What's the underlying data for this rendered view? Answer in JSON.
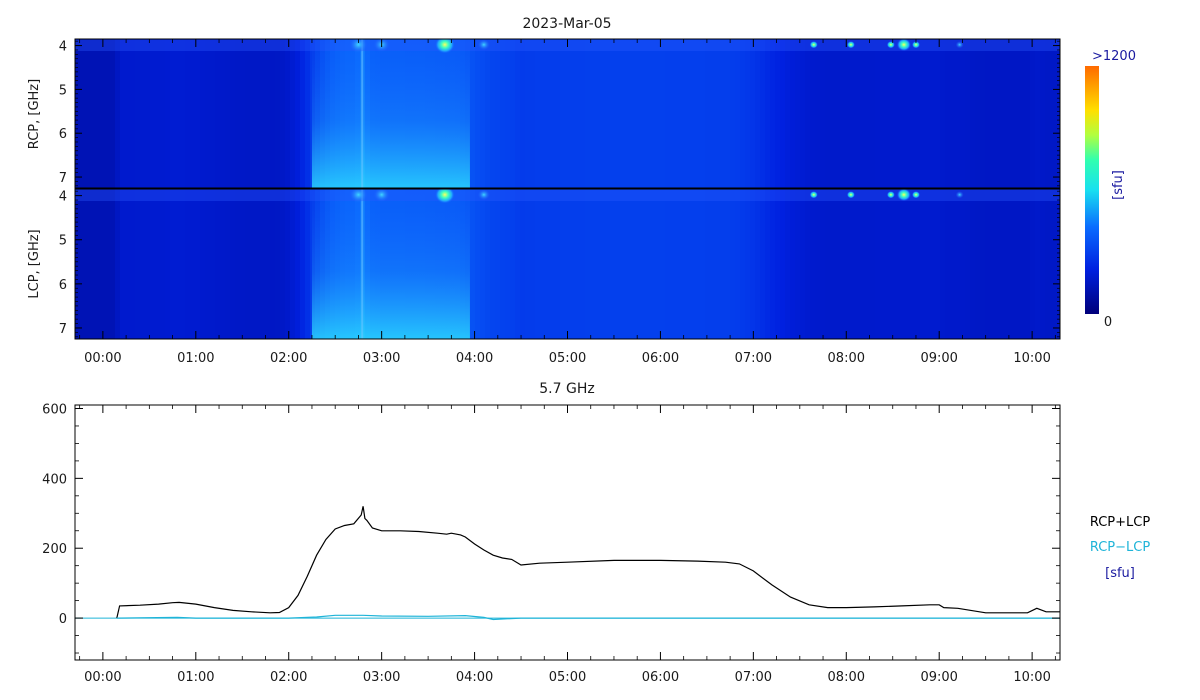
{
  "page": {
    "title": "2023-Mar-05"
  },
  "colors": {
    "sum_line": "#000000",
    "diff_line": "#1fb4d8",
    "unit_label": "#1a1aa0",
    "cmap_low": "#00008a",
    "cmap_mid": "#0a3ff0",
    "cmap_cyan": "#18e4f0",
    "cmap_high": "#ff7a00"
  },
  "spectrogram": {
    "rcp_ylabel": "RCP, [GHz]",
    "lcp_ylabel": "LCP, [GHz]",
    "freq_ticks": [
      "4",
      "5",
      "6",
      "7"
    ],
    "freq_range_ghz": [
      3.85,
      7.25
    ],
    "colorbar": {
      "max_label": ">1200",
      "min_label": "0",
      "unit_label": "[sfu]"
    }
  },
  "time_axis": {
    "range_hours": [
      -0.3,
      10.3
    ],
    "tick_labels": [
      "00:00",
      "01:00",
      "02:00",
      "03:00",
      "04:00",
      "05:00",
      "06:00",
      "07:00",
      "08:00",
      "09:00",
      "10:00"
    ]
  },
  "legend": {
    "sum_label": "RCP+LCP",
    "diff_label": "RCP−LCP",
    "unit_label": "[sfu]"
  },
  "chart_data": [
    {
      "type": "heatmap",
      "panel": "RCP",
      "ylabel": "RCP, [GHz]",
      "xlabel": "",
      "ylim": [
        3.85,
        7.25
      ],
      "ytick_labels": [
        "4",
        "5",
        "6",
        "7"
      ],
      "colorbar_range_sfu": [
        0,
        1200
      ],
      "notes": "intensity (sfu) vs time, roughly uniform across frequency"
    },
    {
      "type": "heatmap",
      "panel": "LCP",
      "ylabel": "LCP, [GHz]",
      "xlabel": "",
      "ylim": [
        3.85,
        7.25
      ],
      "ytick_labels": [
        "4",
        "5",
        "6",
        "7"
      ],
      "colorbar_range_sfu": [
        0,
        1200
      ]
    },
    {
      "type": "line",
      "title": "5.7 GHz",
      "xlabel": "",
      "ylabel": "",
      "xlim": [
        -0.3,
        10.3
      ],
      "ylim": [
        -120,
        610
      ],
      "yticks": [
        0,
        200,
        400,
        600
      ],
      "xtick_labels": [
        "00:00",
        "01:00",
        "02:00",
        "03:00",
        "04:00",
        "05:00",
        "06:00",
        "07:00",
        "08:00",
        "09:00",
        "10:00"
      ],
      "series": [
        {
          "name": "RCP+LCP",
          "x": [
            0.15,
            0.18,
            0.4,
            0.6,
            0.75,
            0.82,
            1.0,
            1.2,
            1.4,
            1.6,
            1.8,
            1.9,
            2.0,
            2.1,
            2.2,
            2.3,
            2.4,
            2.5,
            2.6,
            2.7,
            2.78,
            2.8,
            2.82,
            2.84,
            2.9,
            3.0,
            3.2,
            3.4,
            3.6,
            3.7,
            3.75,
            3.85,
            3.9,
            4.0,
            4.1,
            4.2,
            4.3,
            4.4,
            4.5,
            4.7,
            5.0,
            5.5,
            6.0,
            6.4,
            6.7,
            6.85,
            7.0,
            7.2,
            7.4,
            7.6,
            7.8,
            8.0,
            8.3,
            8.6,
            8.9,
            9.0,
            9.05,
            9.2,
            9.5,
            9.8,
            9.95,
            10.05,
            10.15,
            10.3
          ],
          "y": [
            0,
            35,
            37,
            40,
            44,
            45,
            40,
            30,
            22,
            18,
            15,
            16,
            30,
            65,
            120,
            180,
            225,
            255,
            265,
            270,
            295,
            320,
            285,
            280,
            258,
            250,
            250,
            248,
            243,
            240,
            243,
            238,
            232,
            212,
            195,
            180,
            172,
            168,
            152,
            157,
            160,
            165,
            165,
            163,
            160,
            155,
            135,
            95,
            60,
            38,
            30,
            30,
            32,
            35,
            38,
            38,
            30,
            28,
            15,
            15,
            15,
            28,
            18,
            18
          ]
        },
        {
          "name": "RCP−LCP",
          "x": [
            0.15,
            0.8,
            1.0,
            2.0,
            2.3,
            2.5,
            2.8,
            3.0,
            3.5,
            3.9,
            4.1,
            4.2,
            4.5,
            10.3
          ],
          "y": [
            0,
            2,
            0,
            0,
            3,
            8,
            8,
            6,
            5,
            7,
            2,
            -4,
            0,
            0
          ]
        }
      ]
    }
  ]
}
